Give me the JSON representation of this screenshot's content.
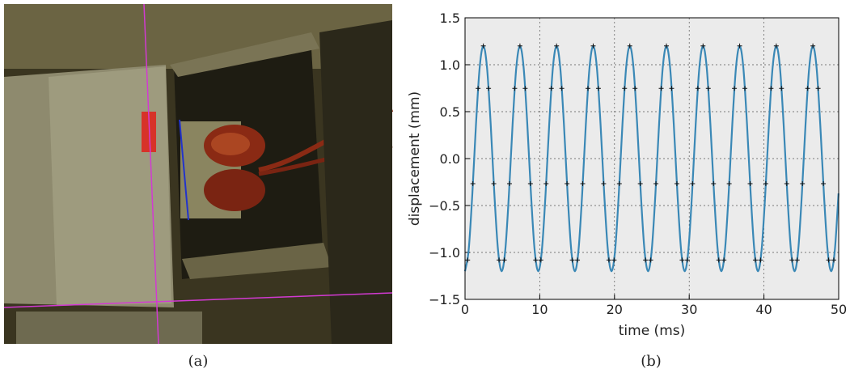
{
  "panels": [
    {
      "caption": "(a)"
    },
    {
      "caption": "(b)"
    }
  ],
  "chart_data": {
    "type": "line",
    "xlabel": "time (ms)",
    "ylabel": "displacement (mm)",
    "xlim": [
      0,
      50
    ],
    "ylim": [
      -1.5,
      1.5
    ],
    "xticks": [
      0,
      10,
      20,
      30,
      40,
      50
    ],
    "yticks": [
      {
        "value": 1.5,
        "label": "1.5"
      },
      {
        "value": 1,
        "label": "1.0"
      },
      {
        "value": 0.5,
        "label": "0.5"
      },
      {
        "value": 0,
        "label": "0.0"
      },
      {
        "value": -0.5,
        "label": "−0.5"
      },
      {
        "value": -1,
        "label": "−1.0"
      },
      {
        "value": -1.5,
        "label": "−1.5"
      }
    ],
    "grid": true,
    "background": "#ebebeb",
    "series": [
      {
        "type": "line",
        "color": "#3a88b6",
        "x": [
          0,
          0.49,
          0.98,
          1.47,
          1.96,
          2.45,
          2.94,
          3.43,
          3.92,
          4.41,
          4.9,
          5.39,
          5.88,
          6.37,
          6.86,
          7.35,
          7.84,
          8.33,
          8.82,
          9.31,
          9.8,
          10.29,
          10.78,
          11.27,
          11.76,
          12.25,
          12.74,
          13.23,
          13.72,
          14.21,
          14.7,
          15.19,
          15.68,
          16.17,
          16.66,
          17.15,
          17.64,
          18.13,
          18.62,
          19.11,
          19.6,
          20.09,
          20.58,
          21.07,
          21.56,
          22.05,
          22.54,
          23.03,
          23.52,
          24.01,
          24.5,
          24.99,
          25.48,
          25.97,
          26.46,
          26.95,
          27.44,
          27.93,
          28.42,
          28.91,
          29.4,
          29.89,
          30.38,
          30.87,
          31.36,
          31.85,
          32.34,
          32.83,
          33.32,
          33.81,
          34.3,
          34.79,
          35.28,
          35.77,
          36.26,
          36.75,
          37.24,
          37.73,
          38.22,
          38.71,
          39.2,
          39.69,
          40.18,
          40.67,
          41.16,
          41.65,
          42.14,
          42.63,
          43.12,
          43.61,
          44.1,
          44.59,
          45.08,
          45.57,
          46.06,
          46.55,
          47.04,
          47.53,
          48.02,
          48.51,
          49,
          49.49,
          49.98
        ],
        "values": [
          -1.2,
          -0.971,
          -0.371,
          0.371,
          0.971,
          1.2,
          0.971,
          0.371,
          -0.371,
          -0.971,
          -1.2,
          -0.971,
          -0.371,
          0.371,
          0.971,
          1.2,
          0.971,
          0.371,
          -0.371,
          -0.971,
          -1.2,
          -0.971,
          -0.371,
          0.371,
          0.971,
          1.2,
          0.971,
          0.371,
          -0.371,
          -0.971,
          -1.2,
          -0.971,
          -0.371,
          0.371,
          0.971,
          1.2,
          0.971,
          0.371,
          -0.371,
          -0.971,
          -1.2,
          -0.971,
          -0.371,
          0.371,
          0.971,
          1.2,
          0.971,
          0.371,
          -0.371,
          -0.971,
          -1.2,
          -0.971,
          -0.371,
          0.371,
          0.971,
          1.2,
          0.971,
          0.371,
          -0.371,
          -0.971,
          -1.2,
          -0.971,
          -0.371,
          0.371,
          0.971,
          1.2,
          0.971,
          0.371,
          -0.371,
          -0.971,
          -1.2,
          -0.971,
          -0.371,
          0.371,
          0.971,
          1.2,
          0.971,
          0.371,
          -0.371,
          -0.971,
          -1.2,
          -0.971,
          -0.371,
          0.371,
          0.971,
          1.2,
          0.971,
          0.371,
          -0.371,
          -0.971,
          -1.2,
          -0.971,
          -0.371,
          0.371,
          0.971,
          1.2,
          0.971,
          0.371,
          -0.371,
          -0.971,
          -1.2,
          -0.971,
          -0.371
        ]
      },
      {
        "type": "scatter",
        "marker": "+",
        "color": "#111111",
        "x": [
          0.35,
          1.05,
          1.75,
          2.45,
          3.15,
          3.85,
          4.55,
          5.25,
          5.95,
          6.65,
          7.35,
          8.05,
          8.75,
          9.45,
          10.15,
          10.85,
          11.55,
          12.25,
          12.95,
          13.65,
          14.35,
          15.05,
          15.75,
          16.45,
          17.15,
          17.85,
          18.55,
          19.25,
          19.95,
          20.65,
          21.35,
          22.05,
          22.75,
          23.45,
          24.15,
          24.85,
          25.55,
          26.25,
          26.95,
          27.65,
          28.35,
          29.05,
          29.75,
          30.45,
          31.15,
          31.85,
          32.55,
          33.25,
          33.95,
          34.65,
          35.35,
          36.05,
          36.75,
          37.45,
          38.15,
          38.85,
          39.55,
          40.25,
          40.95,
          41.65,
          42.35,
          43.05,
          43.75,
          44.45,
          45.15,
          45.85,
          46.55,
          47.25,
          47.95,
          48.65,
          49.35
        ],
        "values": [
          -1.081,
          -0.267,
          0.748,
          1.2,
          0.748,
          -0.267,
          -1.081,
          -1.081,
          -0.267,
          0.748,
          1.2,
          0.748,
          -0.267,
          -1.081,
          -1.081,
          -0.267,
          0.748,
          1.2,
          0.748,
          -0.267,
          -1.081,
          -1.081,
          -0.267,
          0.748,
          1.2,
          0.748,
          -0.267,
          -1.081,
          -1.081,
          -0.267,
          0.748,
          1.2,
          0.748,
          -0.267,
          -1.081,
          -1.081,
          -0.267,
          0.748,
          1.2,
          0.748,
          -0.267,
          -1.081,
          -1.081,
          -0.267,
          0.748,
          1.2,
          0.748,
          -0.267,
          -1.081,
          -1.081,
          -0.267,
          0.748,
          1.2,
          0.748,
          -0.267,
          -1.081,
          -1.081,
          -0.267,
          0.748,
          1.2,
          0.748,
          -0.267,
          -1.081,
          -1.081,
          -0.267,
          0.748,
          1.2,
          0.748,
          -0.267,
          -1.081,
          -1.081
        ]
      }
    ]
  }
}
